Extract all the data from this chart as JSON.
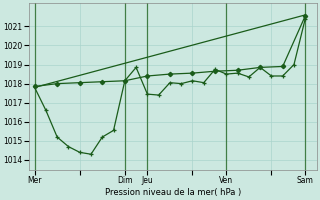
{
  "background_color": "#cce8e0",
  "grid_color": "#aad4cc",
  "line_color": "#1a5c1a",
  "ylabel_text": "Pression niveau de la mer( hPa )",
  "ylim": [
    1013.5,
    1022.2
  ],
  "yticks": [
    1014,
    1015,
    1016,
    1017,
    1018,
    1019,
    1020,
    1021
  ],
  "xtick_labels": [
    "Mer",
    "",
    "Dim",
    "Jeu",
    "",
    "Ven",
    "",
    "Sam"
  ],
  "xtick_positions": [
    0,
    4,
    8,
    10,
    14,
    17,
    21,
    24
  ],
  "xlim": [
    -0.5,
    25
  ],
  "vline_x": [
    0,
    8,
    10,
    17,
    24
  ],
  "line_wiggly_x": [
    0,
    1,
    2,
    3,
    4,
    5,
    6,
    7,
    8,
    9,
    10,
    11,
    12,
    13,
    14,
    15,
    16,
    17,
    18,
    19,
    20,
    21,
    22,
    23,
    24
  ],
  "line_wiggly_y": [
    1017.8,
    1016.6,
    1015.2,
    1014.7,
    1014.4,
    1014.3,
    1015.2,
    1015.55,
    1018.15,
    1018.85,
    1017.45,
    1017.4,
    1018.05,
    1018.0,
    1018.15,
    1018.05,
    1018.75,
    1018.5,
    1018.55,
    1018.35,
    1018.85,
    1018.4,
    1018.4,
    1019.0,
    1021.4
  ],
  "line_trend_x": [
    0,
    24
  ],
  "line_trend_y": [
    1017.8,
    1021.6
  ],
  "line_mid_x": [
    0,
    2,
    4,
    6,
    8,
    10,
    12,
    14,
    16,
    18,
    20,
    22,
    24
  ],
  "line_mid_y": [
    1017.85,
    1018.0,
    1018.05,
    1018.1,
    1018.15,
    1018.4,
    1018.5,
    1018.55,
    1018.65,
    1018.7,
    1018.85,
    1018.9,
    1021.55
  ]
}
